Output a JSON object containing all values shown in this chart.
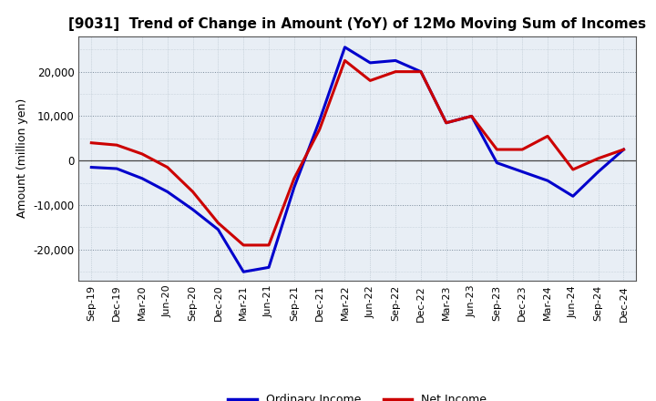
{
  "title": "[9031]  Trend of Change in Amount (YoY) of 12Mo Moving Sum of Incomes",
  "ylabel": "Amount (million yen)",
  "background_color": "#ffffff",
  "plot_bg_color": "#e8eef5",
  "grid_color_major": "#7a8a9a",
  "grid_color_minor": "#b0bec8",
  "x_labels": [
    "Sep-19",
    "Dec-19",
    "Mar-20",
    "Jun-20",
    "Sep-20",
    "Dec-20",
    "Mar-21",
    "Jun-21",
    "Sep-21",
    "Dec-21",
    "Mar-22",
    "Jun-22",
    "Sep-22",
    "Dec-22",
    "Mar-23",
    "Jun-23",
    "Sep-23",
    "Dec-23",
    "Mar-24",
    "Jun-24",
    "Sep-24",
    "Dec-24"
  ],
  "ordinary_income": [
    -1500,
    -1800,
    -4000,
    -7000,
    -11000,
    -15500,
    -25000,
    -24000,
    -6000,
    9000,
    25500,
    22000,
    22500,
    20000,
    8500,
    10000,
    -500,
    -2500,
    -4500,
    -8000,
    -2500,
    2500
  ],
  "net_income": [
    4000,
    3500,
    1500,
    -1500,
    -7000,
    -14000,
    -19000,
    -19000,
    -4000,
    7000,
    22500,
    18000,
    20000,
    20000,
    8500,
    10000,
    2500,
    2500,
    5500,
    -2000,
    500,
    2500
  ],
  "ordinary_color": "#0000cc",
  "net_color": "#cc0000",
  "ylim": [
    -27000,
    28000
  ],
  "yticks": [
    -20000,
    -10000,
    0,
    10000,
    20000
  ],
  "line_width": 2.2,
  "legend_labels": [
    "Ordinary Income",
    "Net Income"
  ]
}
